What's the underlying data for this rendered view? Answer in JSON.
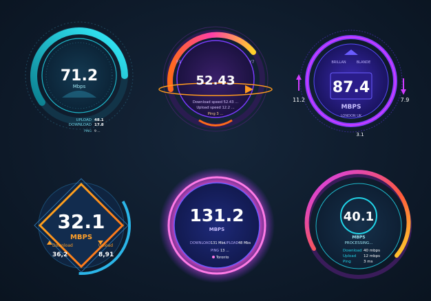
{
  "gauges": {
    "g1": {
      "value": "71.2",
      "unit": "Mbps",
      "upload_label": "UPLOAD",
      "upload_value": "48.1",
      "download_label": "DOWNLOAD",
      "download_value": "17.8",
      "ping_label": "PING",
      "ping_value": "9 ..."
    },
    "g2": {
      "value": "52.43",
      "left_label": "F1",
      "right_label": "Y7",
      "download_text": "Download speed 52.43 ...",
      "upload_text": "Upload speed 12.2 ...",
      "ping_text": "Ping 3 ..."
    },
    "g3": {
      "value": "87.4",
      "unit": "MBPS",
      "top_left": "BRILLAN",
      "top_right": "BLANDE",
      "location": "LONDON UK",
      "left_value": "11.2",
      "right_value": "7.9",
      "bottom_value": "3.1"
    },
    "g4": {
      "value": "32.1",
      "unit": "MBPS",
      "download_label": "Download",
      "download_value": "36,2",
      "upload_label": "Upload",
      "upload_value": "8,91"
    },
    "g5": {
      "value": "131.2",
      "unit": "MBPS",
      "download_label": "DOWNLOAD",
      "download_value": "131 Mbs",
      "upload_label": "UPLOAD",
      "upload_value": "48 Mbs",
      "ping_label": "PING",
      "ping_value": "13 ...",
      "location": "Toronto"
    },
    "g6": {
      "value": "40.1",
      "unit": "MBPS",
      "status": "PROCESSING...",
      "download_label": "Download",
      "download_value": "40 mbps",
      "upload_label": "Upload",
      "upload_value": "12 mbps",
      "ping_label": "Ping",
      "ping_value": "3 ms"
    }
  },
  "colors": {
    "background": "#0e1a2a",
    "cyan": "#21d4e8",
    "orange": "#ff8a1f",
    "purple": "#8a3cff",
    "magenta": "#d13cff",
    "pink": "#ff4fd8",
    "yellow": "#ffd12a"
  }
}
